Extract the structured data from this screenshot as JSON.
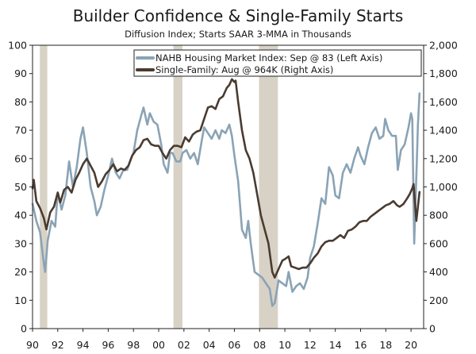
{
  "chart_data": {
    "type": "line",
    "title": "Builder Confidence & Single-Family Starts",
    "subtitle": "Diffusion Index; Starts SAAR 3-MMA in Thousands",
    "x_ticks": [
      "90",
      "92",
      "94",
      "96",
      "98",
      "00",
      "02",
      "04",
      "06",
      "08",
      "10",
      "12",
      "14",
      "16",
      "18",
      "20"
    ],
    "x_range": [
      1990,
      2021
    ],
    "y_left": {
      "range": [
        0,
        100
      ],
      "ticks": [
        "0",
        "10",
        "20",
        "30",
        "40",
        "50",
        "60",
        "70",
        "80",
        "90",
        "100"
      ]
    },
    "y_right": {
      "range": [
        0,
        2000
      ],
      "ticks": [
        "0",
        "200",
        "400",
        "600",
        "800",
        "1,000",
        "1,200",
        "1,400",
        "1,600",
        "1,800",
        "2,000"
      ]
    },
    "recessions": [
      [
        1990.58,
        1991.17
      ],
      [
        2001.17,
        2001.88
      ],
      [
        2007.95,
        2009.45
      ]
    ],
    "legend_placement": "top-right",
    "colors": {
      "nahb": "#8aa3b5",
      "starts": "#4a3b30",
      "recession": "#d8d2c6"
    },
    "series": [
      {
        "name": "NAHB Housing Market Index: Sep @ 83 (Left Axis)",
        "axis": "left",
        "points": [
          [
            1990.0,
            44
          ],
          [
            1990.3,
            38
          ],
          [
            1990.6,
            34
          ],
          [
            1990.9,
            23
          ],
          [
            1991.0,
            20
          ],
          [
            1991.2,
            31
          ],
          [
            1991.5,
            38
          ],
          [
            1991.8,
            36
          ],
          [
            1992.0,
            48
          ],
          [
            1992.3,
            42
          ],
          [
            1992.6,
            47
          ],
          [
            1992.9,
            59
          ],
          [
            1993.2,
            50
          ],
          [
            1993.5,
            57
          ],
          [
            1993.8,
            67
          ],
          [
            1994.0,
            71
          ],
          [
            1994.3,
            62
          ],
          [
            1994.6,
            50
          ],
          [
            1994.9,
            45
          ],
          [
            1995.1,
            40
          ],
          [
            1995.4,
            43
          ],
          [
            1995.7,
            49
          ],
          [
            1996.0,
            54
          ],
          [
            1996.3,
            60
          ],
          [
            1996.6,
            55
          ],
          [
            1996.9,
            53
          ],
          [
            1997.2,
            56
          ],
          [
            1997.5,
            56
          ],
          [
            1997.8,
            60
          ],
          [
            1998.0,
            62
          ],
          [
            1998.3,
            70
          ],
          [
            1998.6,
            75
          ],
          [
            1998.8,
            78
          ],
          [
            1999.1,
            72
          ],
          [
            1999.3,
            76
          ],
          [
            1999.6,
            73
          ],
          [
            1999.9,
            72
          ],
          [
            2000.2,
            65
          ],
          [
            2000.4,
            58
          ],
          [
            2000.7,
            55
          ],
          [
            2000.9,
            62
          ],
          [
            2001.1,
            62
          ],
          [
            2001.4,
            59
          ],
          [
            2001.7,
            59
          ],
          [
            2001.9,
            62
          ],
          [
            2002.2,
            63
          ],
          [
            2002.5,
            60
          ],
          [
            2002.8,
            62
          ],
          [
            2003.1,
            58
          ],
          [
            2003.4,
            66
          ],
          [
            2003.6,
            71
          ],
          [
            2003.9,
            69
          ],
          [
            2004.2,
            67
          ],
          [
            2004.5,
            70
          ],
          [
            2004.8,
            67
          ],
          [
            2005.0,
            70
          ],
          [
            2005.3,
            69
          ],
          [
            2005.6,
            72
          ],
          [
            2005.8,
            68
          ],
          [
            2006.0,
            61
          ],
          [
            2006.3,
            52
          ],
          [
            2006.6,
            35
          ],
          [
            2006.9,
            32
          ],
          [
            2007.1,
            38
          ],
          [
            2007.3,
            30
          ],
          [
            2007.6,
            20
          ],
          [
            2007.9,
            19
          ],
          [
            2008.2,
            18
          ],
          [
            2008.5,
            16
          ],
          [
            2008.8,
            14
          ],
          [
            2009.0,
            8
          ],
          [
            2009.2,
            9
          ],
          [
            2009.5,
            17
          ],
          [
            2009.8,
            16
          ],
          [
            2010.1,
            15
          ],
          [
            2010.3,
            20
          ],
          [
            2010.6,
            13
          ],
          [
            2010.9,
            15
          ],
          [
            2011.2,
            16
          ],
          [
            2011.5,
            14
          ],
          [
            2011.8,
            18
          ],
          [
            2012.0,
            25
          ],
          [
            2012.3,
            29
          ],
          [
            2012.6,
            37
          ],
          [
            2012.9,
            46
          ],
          [
            2013.2,
            44
          ],
          [
            2013.5,
            57
          ],
          [
            2013.8,
            54
          ],
          [
            2014.0,
            47
          ],
          [
            2014.3,
            46
          ],
          [
            2014.6,
            55
          ],
          [
            2014.9,
            58
          ],
          [
            2015.2,
            55
          ],
          [
            2015.5,
            60
          ],
          [
            2015.8,
            64
          ],
          [
            2016.0,
            61
          ],
          [
            2016.3,
            58
          ],
          [
            2016.6,
            64
          ],
          [
            2016.9,
            69
          ],
          [
            2017.2,
            71
          ],
          [
            2017.5,
            67
          ],
          [
            2017.8,
            68
          ],
          [
            2017.95,
            74
          ],
          [
            2018.2,
            70
          ],
          [
            2018.5,
            68
          ],
          [
            2018.8,
            68
          ],
          [
            2018.95,
            56
          ],
          [
            2019.2,
            63
          ],
          [
            2019.5,
            65
          ],
          [
            2019.8,
            71
          ],
          [
            2020.0,
            76
          ],
          [
            2020.1,
            74
          ],
          [
            2020.25,
            30
          ],
          [
            2020.45,
            58
          ],
          [
            2020.55,
            72
          ],
          [
            2020.67,
            83
          ]
        ]
      },
      {
        "name": "Single-Family: Aug @ 964K (Right Axis)",
        "axis": "right",
        "points": [
          [
            1990.0,
            990
          ],
          [
            1990.1,
            1050
          ],
          [
            1990.3,
            900
          ],
          [
            1990.6,
            850
          ],
          [
            1990.9,
            780
          ],
          [
            1991.1,
            700
          ],
          [
            1991.4,
            820
          ],
          [
            1991.7,
            860
          ],
          [
            1992.0,
            960
          ],
          [
            1992.2,
            890
          ],
          [
            1992.5,
            980
          ],
          [
            1992.8,
            1000
          ],
          [
            1993.1,
            960
          ],
          [
            1993.4,
            1050
          ],
          [
            1993.7,
            1100
          ],
          [
            1994.0,
            1160
          ],
          [
            1994.3,
            1200
          ],
          [
            1994.6,
            1150
          ],
          [
            1994.9,
            1100
          ],
          [
            1995.2,
            1000
          ],
          [
            1995.5,
            1040
          ],
          [
            1995.8,
            1090
          ],
          [
            1996.1,
            1120
          ],
          [
            1996.4,
            1160
          ],
          [
            1996.7,
            1110
          ],
          [
            1997.0,
            1130
          ],
          [
            1997.3,
            1120
          ],
          [
            1997.6,
            1150
          ],
          [
            1997.9,
            1220
          ],
          [
            1998.2,
            1260
          ],
          [
            1998.5,
            1280
          ],
          [
            1998.8,
            1330
          ],
          [
            1999.1,
            1340
          ],
          [
            1999.4,
            1300
          ],
          [
            1999.7,
            1290
          ],
          [
            2000.0,
            1290
          ],
          [
            2000.3,
            1240
          ],
          [
            2000.6,
            1200
          ],
          [
            2000.9,
            1260
          ],
          [
            2001.2,
            1290
          ],
          [
            2001.5,
            1290
          ],
          [
            2001.8,
            1280
          ],
          [
            2002.1,
            1350
          ],
          [
            2002.4,
            1320
          ],
          [
            2002.7,
            1370
          ],
          [
            2003.0,
            1390
          ],
          [
            2003.3,
            1400
          ],
          [
            2003.6,
            1480
          ],
          [
            2003.9,
            1560
          ],
          [
            2004.2,
            1570
          ],
          [
            2004.5,
            1550
          ],
          [
            2004.8,
            1620
          ],
          [
            2005.1,
            1640
          ],
          [
            2005.4,
            1700
          ],
          [
            2005.6,
            1720
          ],
          [
            2005.8,
            1760
          ],
          [
            2006.0,
            1740
          ],
          [
            2006.1,
            1750
          ],
          [
            2006.3,
            1600
          ],
          [
            2006.6,
            1400
          ],
          [
            2006.9,
            1260
          ],
          [
            2007.2,
            1200
          ],
          [
            2007.5,
            1100
          ],
          [
            2007.8,
            950
          ],
          [
            2008.1,
            800
          ],
          [
            2008.4,
            700
          ],
          [
            2008.7,
            600
          ],
          [
            2009.0,
            400
          ],
          [
            2009.2,
            360
          ],
          [
            2009.5,
            420
          ],
          [
            2009.8,
            480
          ],
          [
            2010.0,
            490
          ],
          [
            2010.3,
            510
          ],
          [
            2010.5,
            440
          ],
          [
            2010.8,
            430
          ],
          [
            2011.1,
            420
          ],
          [
            2011.4,
            430
          ],
          [
            2011.7,
            430
          ],
          [
            2012.0,
            460
          ],
          [
            2012.3,
            500
          ],
          [
            2012.6,
            530
          ],
          [
            2012.9,
            580
          ],
          [
            2013.2,
            610
          ],
          [
            2013.5,
            620
          ],
          [
            2013.8,
            620
          ],
          [
            2014.1,
            640
          ],
          [
            2014.4,
            660
          ],
          [
            2014.7,
            640
          ],
          [
            2015.0,
            690
          ],
          [
            2015.3,
            700
          ],
          [
            2015.6,
            720
          ],
          [
            2015.9,
            750
          ],
          [
            2016.2,
            760
          ],
          [
            2016.5,
            760
          ],
          [
            2016.8,
            790
          ],
          [
            2017.1,
            810
          ],
          [
            2017.4,
            830
          ],
          [
            2017.7,
            850
          ],
          [
            2018.0,
            870
          ],
          [
            2018.3,
            880
          ],
          [
            2018.6,
            900
          ],
          [
            2018.9,
            870
          ],
          [
            2019.1,
            860
          ],
          [
            2019.4,
            880
          ],
          [
            2019.7,
            920
          ],
          [
            2019.9,
            950
          ],
          [
            2020.1,
            990
          ],
          [
            2020.2,
            1020
          ],
          [
            2020.3,
            900
          ],
          [
            2020.42,
            760
          ],
          [
            2020.55,
            860
          ],
          [
            2020.67,
            964
          ]
        ]
      }
    ]
  }
}
